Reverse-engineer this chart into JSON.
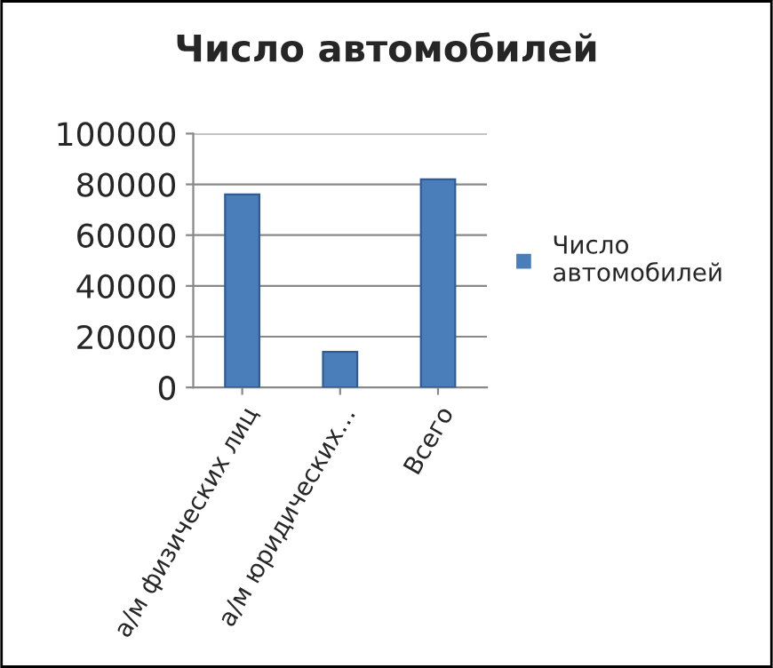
{
  "chart_data": {
    "type": "bar",
    "title": "Число автомобилей",
    "categories": [
      "а/м физических лиц",
      "а/м юридических…",
      "Всего"
    ],
    "series": [
      {
        "name": "Число\nавтомобилей",
        "color": "#4a7ebb",
        "values": [
          76000,
          14000,
          82000
        ]
      }
    ],
    "ylim": [
      0,
      100000
    ],
    "yticks": [
      0,
      20000,
      40000,
      60000,
      80000,
      100000
    ],
    "grid": "y",
    "legend": "right"
  }
}
